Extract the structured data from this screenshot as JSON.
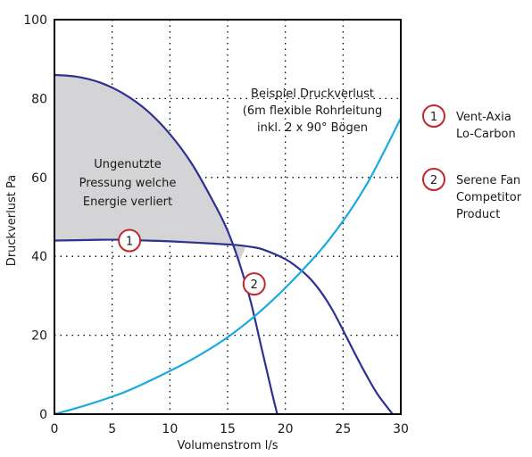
{
  "chart_data": {
    "type": "line",
    "xlabel": "Volumenstrom l/s",
    "ylabel": "Druckverlust Pa",
    "xlim": [
      0,
      30
    ],
    "ylim": [
      0,
      100
    ],
    "x_ticks": [
      "0",
      "5",
      "10",
      "15",
      "20",
      "25",
      "30"
    ],
    "y_ticks": [
      "0",
      "20",
      "40",
      "60",
      "80",
      "100"
    ],
    "grid": true,
    "series": [
      {
        "name": "Vent-Axia Lo-Carbon",
        "color": "#2e3192",
        "x": [
          0,
          2,
          4,
          6,
          8,
          10,
          12,
          14,
          16,
          17,
          18,
          20,
          21,
          22,
          23,
          24,
          25,
          26,
          27,
          28,
          29.3
        ],
        "y": [
          44,
          44.1,
          44.2,
          44.2,
          44,
          43.8,
          43.5,
          43.2,
          42.8,
          42.4,
          41.8,
          39.3,
          37.3,
          34.8,
          31.3,
          26.8,
          21.3,
          15.5,
          10,
          5,
          0
        ]
      },
      {
        "name": "Serene Fan Competitor Product",
        "color": "#2e3192",
        "x": [
          0,
          2,
          4,
          6,
          8,
          10,
          12,
          14,
          15,
          16,
          17,
          18,
          18.8,
          19.3
        ],
        "y": [
          86,
          85.5,
          84,
          81.2,
          77,
          71,
          63,
          52.5,
          46.5,
          38.5,
          28.5,
          16,
          6,
          0
        ]
      },
      {
        "name": "Beispiel Druckverlust",
        "color": "#1aa9e0",
        "x": [
          0,
          3,
          6,
          9,
          12,
          15,
          18,
          21,
          24,
          27,
          30
        ],
        "y": [
          0,
          2.5,
          5.5,
          9.5,
          14,
          19.5,
          26.5,
          35,
          45,
          58,
          75
        ]
      }
    ],
    "shaded_region": {
      "label_lines": [
        "Ungenutzte",
        "Pressung welche",
        "Energie verliert"
      ],
      "x": [
        0,
        2,
        4,
        6,
        8,
        10,
        12,
        14,
        15,
        16,
        16.6,
        16,
        14,
        12,
        10,
        8,
        6,
        4,
        2,
        0
      ],
      "y": [
        86,
        85.5,
        84,
        81.2,
        77,
        71,
        63,
        52.5,
        46.5,
        38.5,
        42.6,
        42.8,
        43.2,
        43.5,
        43.8,
        44,
        44.2,
        44.2,
        44.1,
        44
      ]
    },
    "annotation": {
      "lines": [
        "Beispiel Druckverlust",
        "(6m flexible Rohrleitung",
        "inkl. 2 x 90° Bögen"
      ]
    },
    "markers": [
      {
        "label": "1",
        "x": 6.5,
        "y": 44,
        "color": "#c1272d"
      },
      {
        "label": "2",
        "x": 17.3,
        "y": 33,
        "color": "#c1272d"
      }
    ],
    "legend": {
      "placement": "right",
      "items": [
        {
          "number": "1",
          "lines": [
            "Vent-Axia",
            "Lo-Carbon"
          ]
        },
        {
          "number": "2",
          "lines": [
            "Serene Fan",
            "Competitor",
            "Product"
          ]
        }
      ]
    },
    "colors": {
      "region_fill": "#d4d4d6",
      "grid": "#000000",
      "marker_circle": "#c1272d"
    }
  }
}
